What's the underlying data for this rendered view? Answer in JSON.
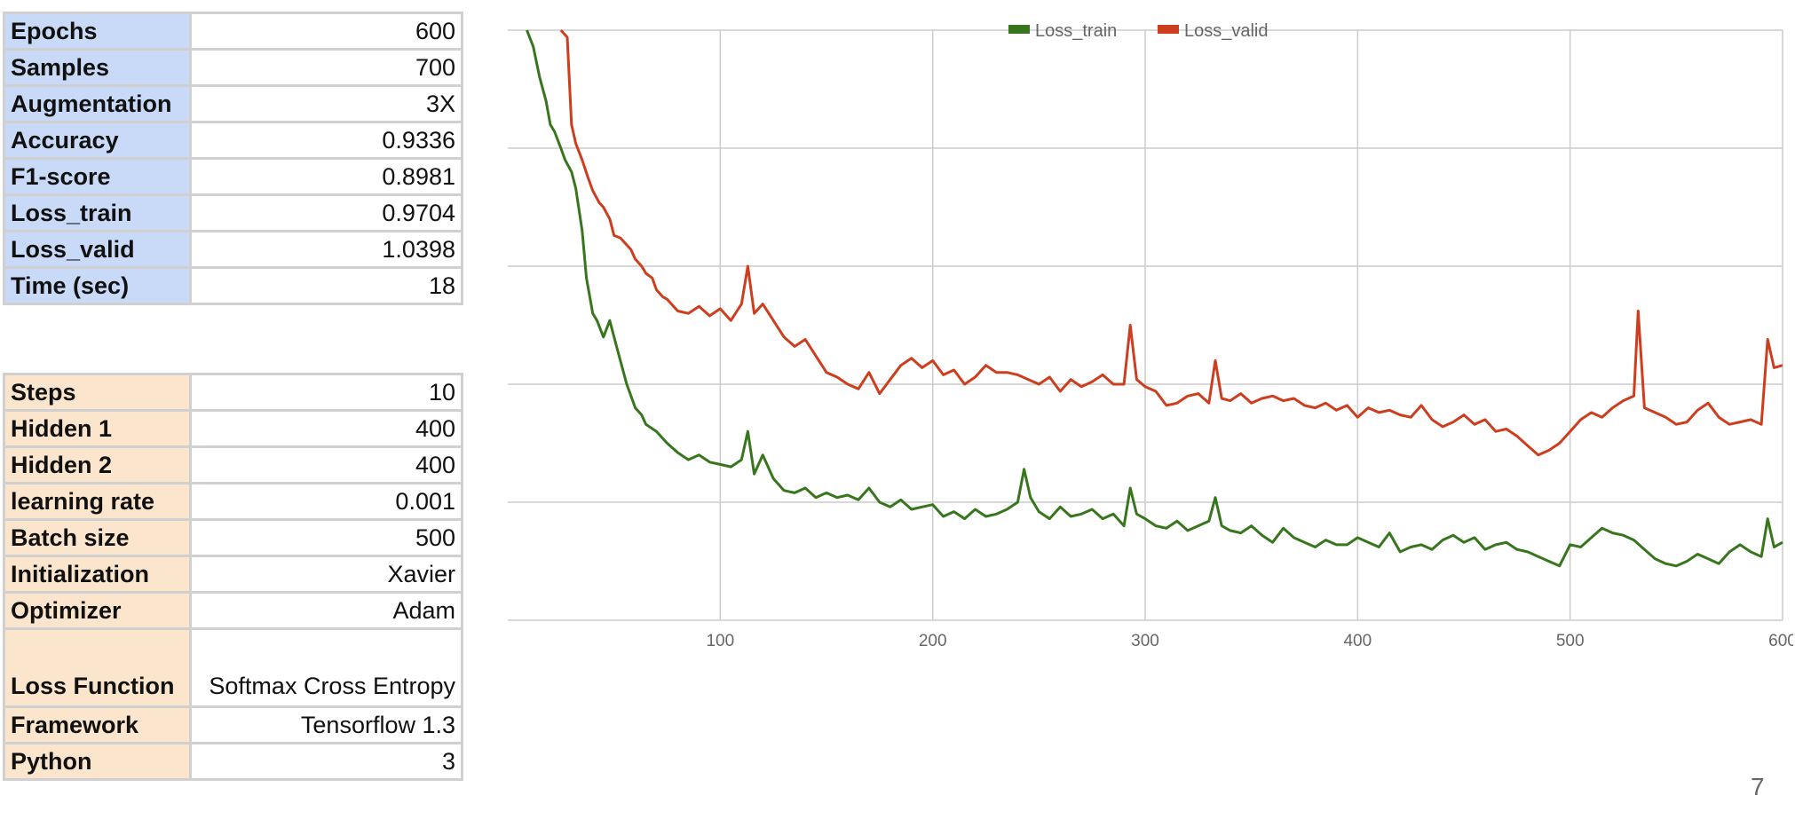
{
  "metrics_table": [
    {
      "key": "Epochs",
      "value": "600"
    },
    {
      "key": "Samples",
      "value": "700"
    },
    {
      "key": "Augmentation",
      "value": "3X"
    },
    {
      "key": "Accuracy",
      "value": "0.9336"
    },
    {
      "key": "F1-score",
      "value": "0.8981"
    },
    {
      "key": "Loss_train",
      "value": "0.9704"
    },
    {
      "key": "Loss_valid",
      "value": "1.0398"
    },
    {
      "key": "Time (sec)",
      "value": "18"
    }
  ],
  "config_table": [
    {
      "key": "Steps",
      "value": "10"
    },
    {
      "key": "Hidden 1",
      "value": "400"
    },
    {
      "key": "Hidden 2",
      "value": "400"
    },
    {
      "key": "learning rate",
      "value": "0.001"
    },
    {
      "key": "Batch size",
      "value": "500"
    },
    {
      "key": "Initialization",
      "value": "Xavier"
    },
    {
      "key": "Optimizer",
      "value": "Adam"
    },
    {
      "key": "Loss Function",
      "value": "Softmax Cross Entropy"
    },
    {
      "key": "Framework",
      "value": "Tensorflow 1.3"
    },
    {
      "key": "Python",
      "value": "3"
    }
  ],
  "page_number": "7",
  "chart_data": {
    "type": "line",
    "title": "",
    "xlabel": "",
    "ylabel": "",
    "xlim": [
      0,
      600
    ],
    "ylim": [
      0.95,
      1.2
    ],
    "x_ticks": [
      100,
      200,
      300,
      400,
      500,
      600
    ],
    "y_ticks": [
      0.95,
      1.0,
      1.05,
      1.1,
      1.15,
      1.2
    ],
    "grid": true,
    "legend": "top-center",
    "series": [
      {
        "name": "Loss_train",
        "color": "#38761d",
        "x": [
          9,
          12,
          15,
          18,
          20,
          22,
          25,
          27,
          30,
          32,
          35,
          37,
          40,
          42,
          45,
          48,
          50,
          53,
          56,
          58,
          60,
          63,
          65,
          70,
          75,
          80,
          85,
          90,
          95,
          100,
          105,
          110,
          113,
          116,
          120,
          125,
          130,
          135,
          140,
          145,
          150,
          155,
          160,
          165,
          170,
          175,
          180,
          185,
          190,
          195,
          200,
          205,
          210,
          215,
          220,
          225,
          230,
          235,
          240,
          243,
          246,
          250,
          255,
          260,
          265,
          270,
          275,
          280,
          285,
          290,
          293,
          296,
          300,
          305,
          310,
          315,
          320,
          325,
          330,
          333,
          336,
          340,
          345,
          350,
          355,
          360,
          365,
          370,
          375,
          380,
          385,
          390,
          395,
          400,
          405,
          410,
          415,
          420,
          425,
          430,
          435,
          440,
          445,
          450,
          455,
          460,
          465,
          470,
          475,
          480,
          485,
          490,
          495,
          500,
          505,
          510,
          515,
          520,
          525,
          530,
          535,
          540,
          545,
          550,
          555,
          560,
          565,
          570,
          575,
          580,
          585,
          590,
          593,
          596,
          600
        ],
        "values": [
          1.2,
          1.193,
          1.18,
          1.17,
          1.16,
          1.157,
          1.15,
          1.145,
          1.14,
          1.133,
          1.115,
          1.095,
          1.08,
          1.077,
          1.07,
          1.077,
          1.07,
          1.06,
          1.05,
          1.045,
          1.04,
          1.037,
          1.033,
          1.03,
          1.025,
          1.021,
          1.018,
          1.02,
          1.017,
          1.016,
          1.015,
          1.018,
          1.03,
          1.012,
          1.02,
          1.01,
          1.005,
          1.004,
          1.006,
          1.002,
          1.004,
          1.002,
          1.003,
          1.001,
          1.006,
          1.0,
          0.998,
          1.001,
          0.997,
          0.998,
          0.999,
          0.994,
          0.996,
          0.993,
          0.997,
          0.994,
          0.995,
          0.997,
          1.0,
          1.014,
          1.002,
          0.996,
          0.993,
          0.998,
          0.994,
          0.995,
          0.997,
          0.993,
          0.995,
          0.99,
          1.006,
          0.995,
          0.993,
          0.99,
          0.989,
          0.992,
          0.988,
          0.99,
          0.992,
          1.002,
          0.99,
          0.988,
          0.987,
          0.99,
          0.986,
          0.983,
          0.989,
          0.985,
          0.983,
          0.981,
          0.984,
          0.982,
          0.982,
          0.985,
          0.983,
          0.981,
          0.987,
          0.979,
          0.981,
          0.982,
          0.98,
          0.984,
          0.986,
          0.983,
          0.985,
          0.98,
          0.982,
          0.983,
          0.98,
          0.979,
          0.977,
          0.975,
          0.973,
          0.982,
          0.981,
          0.985,
          0.989,
          0.987,
          0.986,
          0.984,
          0.98,
          0.976,
          0.974,
          0.973,
          0.975,
          0.978,
          0.976,
          0.974,
          0.979,
          0.982,
          0.979,
          0.977,
          0.993,
          0.981,
          0.983
        ]
      },
      {
        "name": "Loss_valid",
        "color": "#cc3e1e",
        "x": [
          25,
          28,
          30,
          32,
          35,
          38,
          40,
          43,
          45,
          48,
          50,
          53,
          55,
          58,
          60,
          63,
          65,
          68,
          70,
          73,
          75,
          78,
          80,
          85,
          90,
          95,
          100,
          105,
          110,
          113,
          116,
          120,
          125,
          130,
          135,
          140,
          145,
          150,
          155,
          160,
          165,
          170,
          175,
          180,
          185,
          190,
          195,
          200,
          205,
          210,
          215,
          220,
          225,
          230,
          235,
          240,
          245,
          250,
          255,
          260,
          265,
          270,
          275,
          280,
          285,
          290,
          293,
          296,
          300,
          305,
          310,
          315,
          320,
          325,
          330,
          333,
          336,
          340,
          345,
          350,
          355,
          360,
          365,
          370,
          375,
          380,
          385,
          390,
          395,
          400,
          405,
          410,
          415,
          420,
          425,
          430,
          435,
          440,
          445,
          450,
          455,
          460,
          465,
          470,
          475,
          480,
          485,
          490,
          495,
          500,
          505,
          510,
          515,
          520,
          525,
          530,
          532,
          535,
          540,
          545,
          550,
          555,
          560,
          565,
          570,
          575,
          580,
          585,
          590,
          593,
          596,
          600
        ],
        "values": [
          1.2,
          1.197,
          1.16,
          1.152,
          1.145,
          1.137,
          1.132,
          1.127,
          1.125,
          1.12,
          1.113,
          1.112,
          1.11,
          1.107,
          1.103,
          1.1,
          1.097,
          1.095,
          1.09,
          1.087,
          1.086,
          1.083,
          1.081,
          1.08,
          1.083,
          1.079,
          1.082,
          1.077,
          1.084,
          1.1,
          1.08,
          1.084,
          1.077,
          1.07,
          1.066,
          1.069,
          1.062,
          1.055,
          1.053,
          1.05,
          1.048,
          1.055,
          1.046,
          1.052,
          1.058,
          1.061,
          1.057,
          1.06,
          1.054,
          1.056,
          1.05,
          1.053,
          1.058,
          1.055,
          1.055,
          1.054,
          1.052,
          1.05,
          1.053,
          1.047,
          1.052,
          1.049,
          1.051,
          1.054,
          1.05,
          1.05,
          1.075,
          1.052,
          1.049,
          1.047,
          1.041,
          1.042,
          1.045,
          1.046,
          1.042,
          1.06,
          1.044,
          1.043,
          1.046,
          1.042,
          1.044,
          1.045,
          1.043,
          1.044,
          1.041,
          1.04,
          1.042,
          1.039,
          1.041,
          1.036,
          1.04,
          1.038,
          1.039,
          1.037,
          1.036,
          1.041,
          1.035,
          1.032,
          1.034,
          1.037,
          1.033,
          1.035,
          1.03,
          1.031,
          1.028,
          1.024,
          1.02,
          1.022,
          1.025,
          1.03,
          1.035,
          1.038,
          1.036,
          1.04,
          1.043,
          1.045,
          1.081,
          1.04,
          1.038,
          1.036,
          1.033,
          1.034,
          1.039,
          1.042,
          1.036,
          1.033,
          1.034,
          1.035,
          1.033,
          1.069,
          1.057,
          1.058
        ]
      }
    ]
  }
}
